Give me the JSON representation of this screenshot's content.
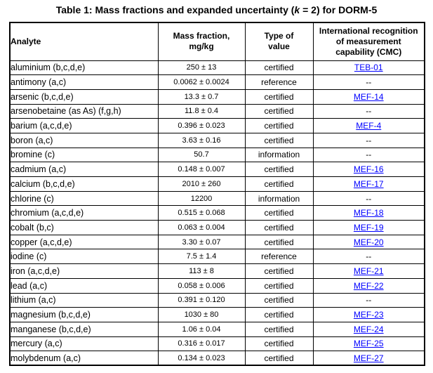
{
  "title": {
    "part1": "Table 1: Mass fractions and expanded uncertainty (",
    "k": "k",
    "part2": " = 2) for DORM-5"
  },
  "colors": {
    "text": "#000000",
    "border": "#000000",
    "link": "#0000FF",
    "background": "#FFFFFF"
  },
  "table": {
    "headers": {
      "analyte": "Analyte",
      "mass_fraction": "Mass fraction,\nmg/kg",
      "type_of_value": "Type of\nvalue",
      "cmc": "International recognition\nof measurement\ncapability (CMC)"
    },
    "rows": [
      {
        "analyte": "aluminium (b,c,d,e)",
        "mass_fraction": "250 ± 13",
        "type_of_value": "certified",
        "cmc": {
          "label": "TEB-01",
          "link": true
        }
      },
      {
        "analyte": "antimony (a,c)",
        "mass_fraction": "0.0062 ± 0.0024",
        "type_of_value": "reference",
        "cmc": {
          "label": "--",
          "link": false
        }
      },
      {
        "analyte": "arsenic (b,c,d,e)",
        "mass_fraction": "13.3 ± 0.7",
        "type_of_value": "certified",
        "cmc": {
          "label": "MEF-14",
          "link": true
        }
      },
      {
        "analyte": "arsenobetaine (as As) (f,g,h)",
        "mass_fraction": "11.8 ± 0.4",
        "type_of_value": "certified",
        "cmc": {
          "label": "--",
          "link": false
        }
      },
      {
        "analyte": "barium (a,c,d,e)",
        "mass_fraction": "0.396 ± 0.023",
        "type_of_value": "certified",
        "cmc": {
          "label": "MEF-4",
          "link": true
        }
      },
      {
        "analyte": "boron (a,c)",
        "mass_fraction": "3.63 ± 0.16",
        "type_of_value": "certified",
        "cmc": {
          "label": "--",
          "link": false
        }
      },
      {
        "analyte": "bromine (c)",
        "mass_fraction": "50.7",
        "type_of_value": "information",
        "cmc": {
          "label": "--",
          "link": false
        }
      },
      {
        "analyte": "cadmium (a,c)",
        "mass_fraction": "0.148 ± 0.007",
        "type_of_value": "certified",
        "cmc": {
          "label": "MEF-16",
          "link": true
        }
      },
      {
        "analyte": "calcium (b,c,d,e)",
        "mass_fraction": "2010 ± 260",
        "type_of_value": "certified",
        "cmc": {
          "label": "MEF-17",
          "link": true
        }
      },
      {
        "analyte": "chlorine (c)",
        "mass_fraction": "12200",
        "type_of_value": "information",
        "cmc": {
          "label": "--",
          "link": false
        }
      },
      {
        "analyte": "chromium (a,c,d,e)",
        "mass_fraction": "0.515 ± 0.068",
        "type_of_value": "certified",
        "cmc": {
          "label": "MEF-18",
          "link": true
        }
      },
      {
        "analyte": "cobalt (b,c)",
        "mass_fraction": "0.063 ± 0.004",
        "type_of_value": "certified",
        "cmc": {
          "label": "MEF-19",
          "link": true
        }
      },
      {
        "analyte": "copper (a,c,d,e)",
        "mass_fraction": "3.30 ± 0.07",
        "type_of_value": "certified",
        "cmc": {
          "label": "MEF-20",
          "link": true
        }
      },
      {
        "analyte": "iodine (c)",
        "mass_fraction": "7.5 ± 1.4",
        "type_of_value": "reference",
        "cmc": {
          "label": "--",
          "link": false
        }
      },
      {
        "analyte": "iron (a,c,d,e)",
        "mass_fraction": "113 ± 8",
        "type_of_value": "certified",
        "cmc": {
          "label": "MEF-21",
          "link": true
        }
      },
      {
        "analyte": "lead (a,c)",
        "mass_fraction": "0.058 ± 0.006",
        "type_of_value": "certified",
        "cmc": {
          "label": "MEF-22",
          "link": true
        }
      },
      {
        "analyte": "lithium (a,c)",
        "mass_fraction": "0.391 ± 0.120",
        "type_of_value": "certified",
        "cmc": {
          "label": "--",
          "link": false
        }
      },
      {
        "analyte": "magnesium (b,c,d,e)",
        "mass_fraction": "1030 ± 80",
        "type_of_value": "certified",
        "cmc": {
          "label": "MEF-23",
          "link": true
        }
      },
      {
        "analyte": "manganese (b,c,d,e)",
        "mass_fraction": "1.06 ± 0.04",
        "type_of_value": "certified",
        "cmc": {
          "label": "MEF-24",
          "link": true
        }
      },
      {
        "analyte": "mercury (a,c)",
        "mass_fraction": "0.316 ± 0.017",
        "type_of_value": "certified",
        "cmc": {
          "label": "MEF-25",
          "link": true
        }
      },
      {
        "analyte": "molybdenum (a,c)",
        "mass_fraction": "0.134 ± 0.023",
        "type_of_value": "certified",
        "cmc": {
          "label": "MEF-27",
          "link": true
        }
      }
    ]
  }
}
